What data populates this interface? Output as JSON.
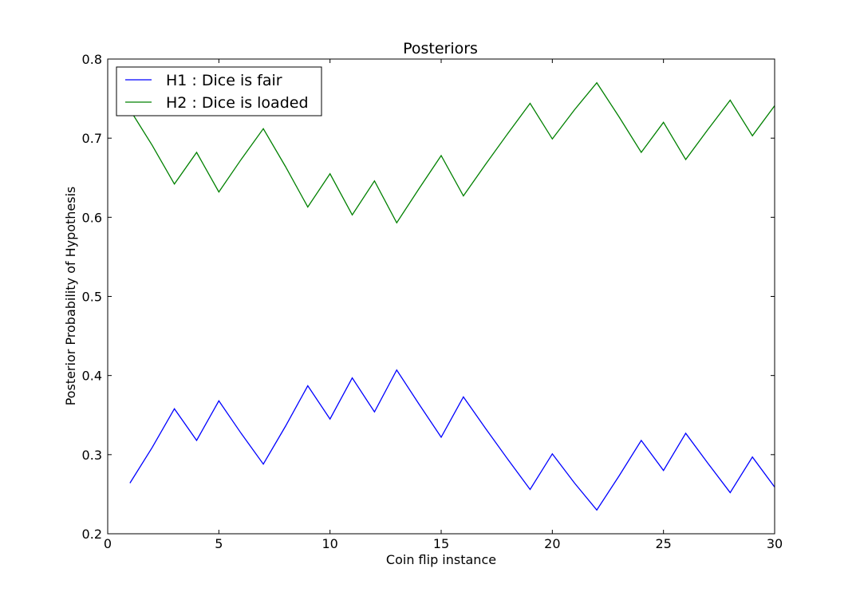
{
  "chart_data": {
    "type": "line",
    "title": "Posteriors",
    "xlabel": "Coin flip instance",
    "ylabel": "Posterior Probability of Hypothesis",
    "xlim": [
      0,
      30
    ],
    "ylim": [
      0.2,
      0.8
    ],
    "xticks": [
      0,
      5,
      10,
      15,
      20,
      25,
      30
    ],
    "yticks": [
      0.2,
      0.3,
      0.4,
      0.5,
      0.6,
      0.7,
      0.8
    ],
    "xtick_labels": [
      "0",
      "5",
      "10",
      "15",
      "20",
      "25",
      "30"
    ],
    "ytick_labels": [
      "0.2",
      "0.3",
      "0.4",
      "0.5",
      "0.6",
      "0.7",
      "0.8"
    ],
    "grid": false,
    "legend_position": "top-left",
    "x": [
      1,
      2,
      3,
      4,
      5,
      6,
      7,
      8,
      9,
      10,
      11,
      12,
      13,
      14,
      15,
      16,
      17,
      18,
      19,
      20,
      21,
      22,
      23,
      24,
      25,
      26,
      27,
      28,
      29,
      30
    ],
    "series": [
      {
        "name": "H1 : Dice is fair",
        "color": "#0000ff",
        "values": [
          0.264,
          0.309,
          0.358,
          0.318,
          0.368,
          0.327,
          0.288,
          0.336,
          0.387,
          0.345,
          0.397,
          0.354,
          0.407,
          0.364,
          0.322,
          0.373,
          0.333,
          0.294,
          0.256,
          0.301,
          0.264,
          0.23,
          0.273,
          0.318,
          0.28,
          0.327,
          0.289,
          0.252,
          0.297,
          0.259
        ]
      },
      {
        "name": "H2 : Dice is loaded",
        "color": "#008000",
        "values": [
          0.736,
          0.691,
          0.642,
          0.682,
          0.632,
          0.673,
          0.712,
          0.664,
          0.613,
          0.655,
          0.603,
          0.646,
          0.593,
          0.636,
          0.678,
          0.627,
          0.667,
          0.706,
          0.744,
          0.699,
          0.736,
          0.77,
          0.727,
          0.682,
          0.72,
          0.673,
          0.711,
          0.748,
          0.703,
          0.741
        ]
      }
    ]
  }
}
